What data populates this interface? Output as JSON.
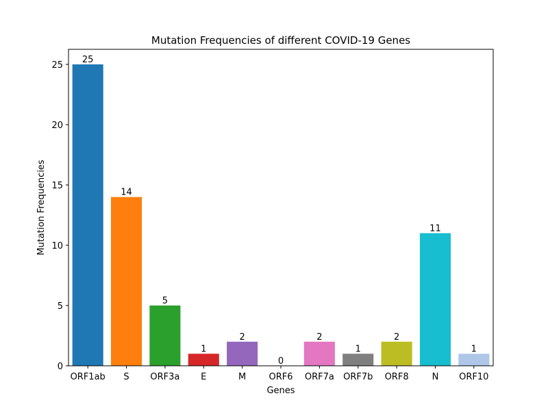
{
  "chart_data": {
    "type": "bar",
    "title": "Mutation Frequencies of different COVID-19 Genes",
    "xlabel": "Genes",
    "ylabel": "Mutation Frequencies",
    "categories": [
      "ORF1ab",
      "S",
      "ORF3a",
      "E",
      "M",
      "ORF6",
      "ORF7a",
      "ORF7b",
      "ORF8",
      "N",
      "ORF10"
    ],
    "values": [
      25,
      14,
      5,
      1,
      2,
      0,
      2,
      1,
      2,
      11,
      1
    ],
    "ylim": [
      0,
      26.25
    ],
    "yticks": [
      0,
      5,
      10,
      15,
      20,
      25
    ],
    "colors": [
      "#1f77b4",
      "#ff7f0e",
      "#2ca02c",
      "#d62728",
      "#9467bd",
      "#8c564b",
      "#e377c2",
      "#7f7f7f",
      "#bcbd22",
      "#17becf",
      "#aec7e8"
    ],
    "grid": false,
    "legend": "none"
  }
}
